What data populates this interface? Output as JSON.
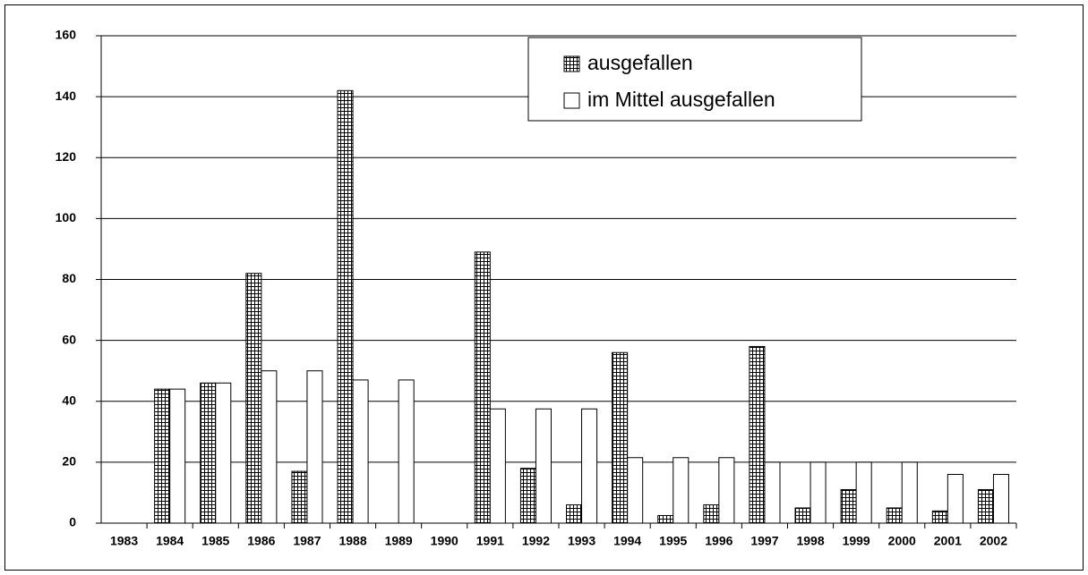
{
  "chart_data": {
    "type": "bar",
    "categories": [
      "1983",
      "1984",
      "1985",
      "1986",
      "1987",
      "1988",
      "1989",
      "1990",
      "1991",
      "1992",
      "1993",
      "1994",
      "1995",
      "1996",
      "1997",
      "1998",
      "1999",
      "2000",
      "2001",
      "2002"
    ],
    "series": [
      {
        "name": "ausgefallen",
        "color": "#ffffff",
        "pattern": "grid",
        "values": [
          0,
          44,
          46,
          82,
          17,
          142,
          0,
          0,
          89,
          18,
          6,
          56,
          2.5,
          6,
          58,
          5,
          11,
          5,
          4,
          11
        ]
      },
      {
        "name": "im Mittel ausgefallen",
        "color": "#ffffff",
        "values": [
          0,
          44,
          46,
          50,
          50,
          47,
          47,
          0,
          37.5,
          37.5,
          37.5,
          21.5,
          21.5,
          21.5,
          20,
          20,
          20,
          20,
          16,
          16
        ]
      }
    ],
    "ylim": [
      0,
      160
    ],
    "yticks": [
      0,
      20,
      40,
      60,
      80,
      100,
      120,
      140,
      160
    ],
    "grid": true,
    "legend": "top-right"
  }
}
